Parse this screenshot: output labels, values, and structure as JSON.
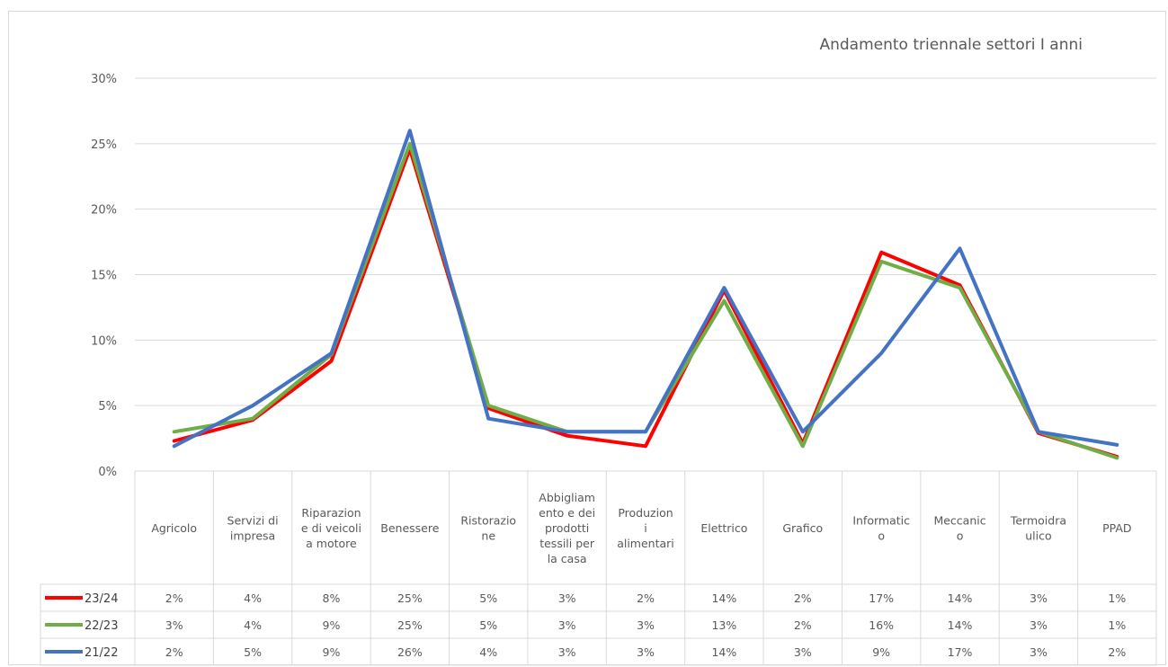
{
  "chart_data": {
    "type": "line",
    "title": "Andamento triennale settori I anni",
    "categories": [
      [
        "Agricolo"
      ],
      [
        "Servizi di",
        "impresa"
      ],
      [
        "Riparazion",
        "e di veicoli",
        "a motore"
      ],
      [
        "Benessere"
      ],
      [
        "Ristorazio",
        "ne"
      ],
      [
        "Abbigliam",
        "ento e dei",
        "prodotti",
        "tessili per",
        "la casa"
      ],
      [
        "Produzion",
        "i",
        "alimentari"
      ],
      [
        "Elettrico"
      ],
      [
        "Grafico"
      ],
      [
        "Informatic",
        "o"
      ],
      [
        "Meccanic",
        "o"
      ],
      [
        "Termoidra",
        "ulico"
      ],
      [
        "PPAD"
      ]
    ],
    "y_ticks": [
      "0%",
      "5%",
      "10%",
      "15%",
      "20%",
      "25%",
      "30%"
    ],
    "ylim": [
      0,
      30
    ],
    "grid": true,
    "legend": "data-table",
    "series": [
      {
        "name": "23/24",
        "color": "#ff0000",
        "values": [
          2.3,
          3.9,
          8.4,
          24.6,
          4.8,
          2.7,
          1.9,
          13.8,
          2.1,
          16.7,
          14.2,
          2.9,
          1.1
        ],
        "labels": [
          "2%",
          "4%",
          "8%",
          "25%",
          "5%",
          "3%",
          "2%",
          "14%",
          "2%",
          "17%",
          "14%",
          "3%",
          "1%"
        ]
      },
      {
        "name": "22/23",
        "color": "#70ad47",
        "values": [
          3.0,
          4.0,
          8.9,
          25.0,
          5.0,
          3.0,
          3.0,
          13.0,
          1.9,
          16.0,
          14.0,
          3.0,
          1.0
        ],
        "labels": [
          "3%",
          "4%",
          "9%",
          "25%",
          "5%",
          "3%",
          "3%",
          "13%",
          "2%",
          "16%",
          "14%",
          "3%",
          "1%"
        ]
      },
      {
        "name": "21/22",
        "color": "#4472c4",
        "values": [
          1.9,
          5.0,
          9.0,
          26.0,
          4.0,
          3.0,
          3.0,
          14.0,
          3.0,
          9.0,
          17.0,
          3.0,
          2.0
        ],
        "labels": [
          "2%",
          "5%",
          "9%",
          "26%",
          "4%",
          "3%",
          "3%",
          "14%",
          "3%",
          "9%",
          "17%",
          "3%",
          "2%"
        ]
      }
    ]
  }
}
